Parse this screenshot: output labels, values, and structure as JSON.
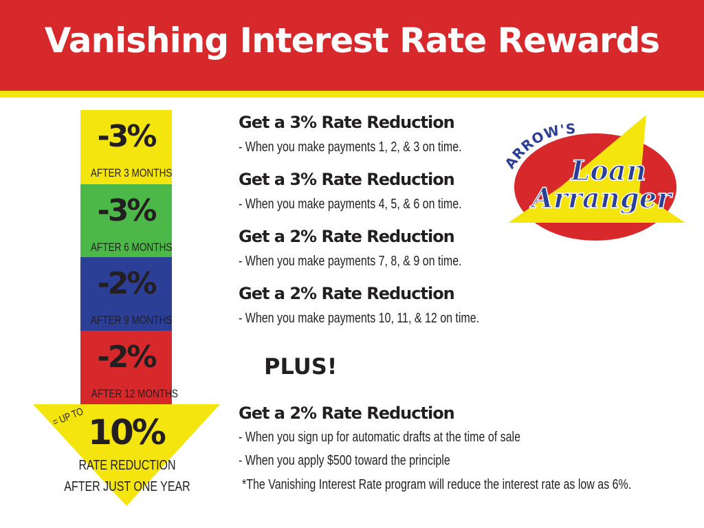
{
  "title": "Vanishing Interest Rate Rewards",
  "colors": {
    "header": "#d7282b",
    "stripe": "#f5e50e",
    "yellow": "#f5e50e",
    "green": "#4cb848",
    "blue": "#2b3f97",
    "red": "#d7282b"
  },
  "steps": [
    {
      "pct": "-3%",
      "label": "AFTER 3 MONTHS",
      "color": "#f5e50e"
    },
    {
      "pct": "-3%",
      "label": "AFTER 6 MONTHS",
      "color": "#4cb848"
    },
    {
      "pct": "-2%",
      "label": "AFTER 9 MONTHS",
      "color": "#2b3f97"
    },
    {
      "pct": "-2%",
      "label": "AFTER 12 MONTHS",
      "color": "#d7282b"
    }
  ],
  "total": {
    "prefix": "= UP TO",
    "pct": "10%",
    "line1": "RATE REDUCTION",
    "line2": "AFTER JUST ONE YEAR"
  },
  "rewards": [
    {
      "heading": "Get a 3% Rate Reduction",
      "detail": "- When you make payments 1, 2, & 3 on time."
    },
    {
      "heading": "Get a 3% Rate Reduction",
      "detail": "- When you make payments 4, 5, & 6 on time."
    },
    {
      "heading": "Get a 2% Rate Reduction",
      "detail": "- When you make payments 7, 8, & 9 on time."
    },
    {
      "heading": "Get a 2% Rate Reduction",
      "detail": "- When you make payments 10, 11, & 12 on time."
    }
  ],
  "plus": "PLUS!",
  "bonus": {
    "heading": "Get a 2% Rate Reduction",
    "line1": "- When you sign up for automatic drafts at the time of sale",
    "line2": "- When you apply $500 toward the principle",
    "note": "*The Vanishing Interest Rate program will reduce the interest rate as low as 6%."
  },
  "logo": {
    "top": "ARROW'S",
    "line1": "Loan",
    "line2": "Arranger"
  }
}
